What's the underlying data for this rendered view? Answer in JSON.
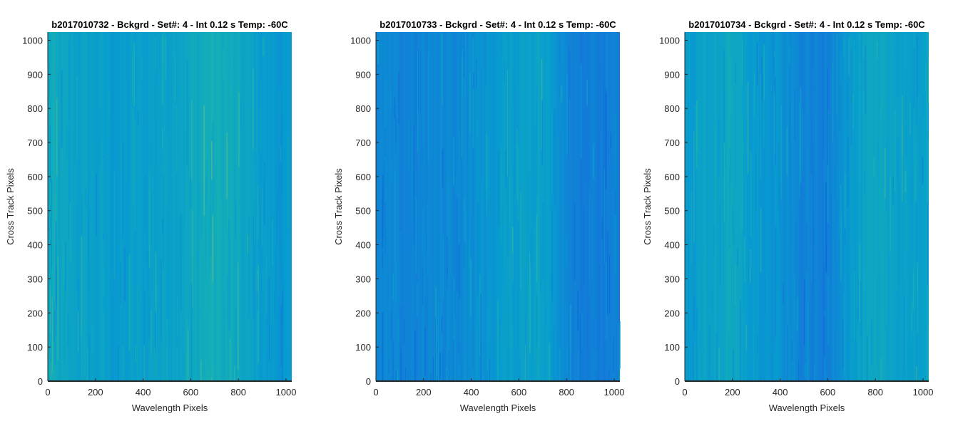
{
  "chart_data": [
    {
      "type": "heatmap",
      "title": "b2017010732 - Bckgrd - Set#: 4 - Int 0.12 s Temp: -60C",
      "xlabel": "Wavelength Pixels",
      "ylabel": "Cross Track Pixels",
      "xlim": [
        0,
        1024
      ],
      "ylim": [
        0,
        1024
      ],
      "xticks": [
        "0",
        "200",
        "400",
        "600",
        "800",
        "1000"
      ],
      "yticks": [
        "0",
        "100",
        "200",
        "300",
        "400",
        "500",
        "600",
        "700",
        "800",
        "900",
        "1000"
      ],
      "grid": false,
      "colormap": "parula",
      "profile": [
        [
          0,
          0.55
        ],
        [
          80,
          0.5
        ],
        [
          200,
          0.48
        ],
        [
          300,
          0.45
        ],
        [
          400,
          0.47
        ],
        [
          500,
          0.5
        ],
        [
          600,
          0.52
        ],
        [
          680,
          0.58
        ],
        [
          760,
          0.55
        ],
        [
          840,
          0.5
        ],
        [
          920,
          0.45
        ],
        [
          1024,
          0.42
        ]
      ]
    },
    {
      "type": "heatmap",
      "title": "b2017010733 - Bckgrd - Set#: 4 - Int 0.12 s Temp: -60C",
      "xlabel": "Wavelength Pixels",
      "ylabel": "Cross Track Pixels",
      "xlim": [
        0,
        1024
      ],
      "ylim": [
        0,
        1024
      ],
      "xticks": [
        "0",
        "200",
        "400",
        "600",
        "800",
        "1000"
      ],
      "yticks": [
        "0",
        "100",
        "200",
        "300",
        "400",
        "500",
        "600",
        "700",
        "800",
        "900",
        "1000"
      ],
      "grid": false,
      "colormap": "parula",
      "profile": [
        [
          0,
          0.35
        ],
        [
          100,
          0.33
        ],
        [
          200,
          0.34
        ],
        [
          300,
          0.36
        ],
        [
          400,
          0.38
        ],
        [
          500,
          0.44
        ],
        [
          600,
          0.48
        ],
        [
          680,
          0.5
        ],
        [
          760,
          0.42
        ],
        [
          840,
          0.32
        ],
        [
          920,
          0.3
        ],
        [
          1024,
          0.3
        ]
      ]
    },
    {
      "type": "heatmap",
      "title": "b2017010734 - Bckgrd - Set#: 4 - Int 0.12 s Temp: -60C",
      "xlabel": "Wavelength Pixels",
      "ylabel": "Cross Track Pixels",
      "xlim": [
        0,
        1024
      ],
      "ylim": [
        0,
        1024
      ],
      "xticks": [
        "0",
        "200",
        "400",
        "600",
        "800",
        "1000"
      ],
      "yticks": [
        "0",
        "100",
        "200",
        "300",
        "400",
        "500",
        "600",
        "700",
        "800",
        "900",
        "1000"
      ],
      "grid": false,
      "colormap": "parula",
      "profile": [
        [
          0,
          0.45
        ],
        [
          100,
          0.5
        ],
        [
          200,
          0.52
        ],
        [
          300,
          0.44
        ],
        [
          400,
          0.4
        ],
        [
          500,
          0.33
        ],
        [
          580,
          0.3
        ],
        [
          660,
          0.42
        ],
        [
          760,
          0.5
        ],
        [
          860,
          0.5
        ],
        [
          960,
          0.48
        ],
        [
          1024,
          0.47
        ]
      ]
    }
  ]
}
